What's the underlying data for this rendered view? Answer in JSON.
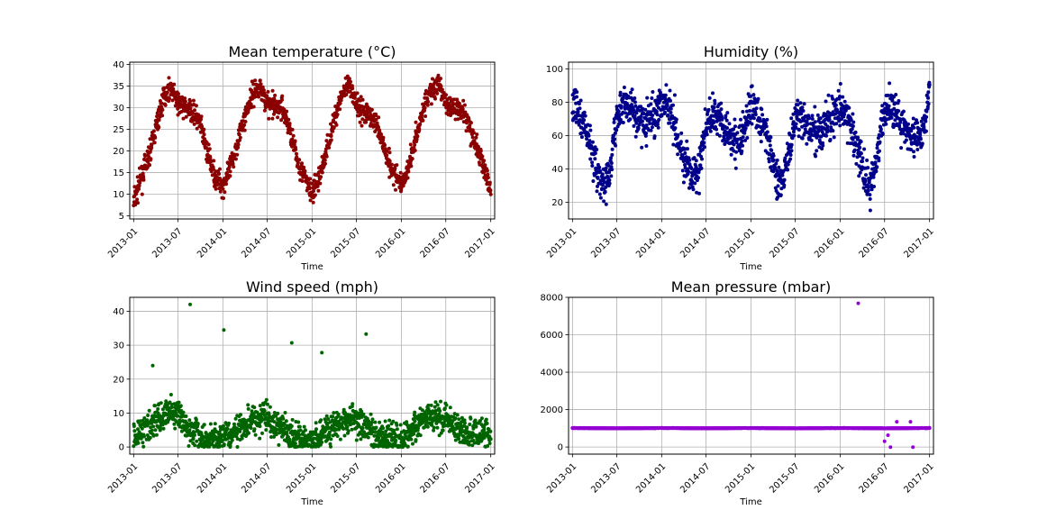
{
  "figure": {
    "panels": [
      {
        "title": "Mean temperature (°C)",
        "xlabel": "Time",
        "color": "#8b0000",
        "xticks": [
          "2013-01",
          "2013-07",
          "2014-01",
          "2014-07",
          "2015-01",
          "2015-07",
          "2016-01",
          "2016-07",
          "2017-01"
        ],
        "yticks": [
          5,
          10,
          15,
          20,
          25,
          30,
          35,
          40
        ],
        "ylim": [
          4.3,
          40.5
        ]
      },
      {
        "title": "Humidity (%)",
        "xlabel": "Time",
        "color": "#00008b",
        "xticks": [
          "2013-01",
          "2013-07",
          "2014-01",
          "2014-07",
          "2015-01",
          "2015-07",
          "2016-01",
          "2016-07",
          "2017-01"
        ],
        "yticks": [
          20,
          40,
          60,
          80,
          100
        ],
        "ylim": [
          10,
          104
        ]
      },
      {
        "title": "Wind speed (mph)",
        "xlabel": "Time",
        "color": "#006400",
        "xticks": [
          "2013-01",
          "2013-07",
          "2014-01",
          "2014-07",
          "2015-01",
          "2015-07",
          "2016-01",
          "2016-07",
          "2017-01"
        ],
        "yticks": [
          0,
          10,
          20,
          30,
          40
        ],
        "ylim": [
          -2.1,
          44.1
        ]
      },
      {
        "title": "Mean pressure (mbar)",
        "xlabel": "Time",
        "color": "#9400d3",
        "xticks": [
          "2013-01",
          "2013-07",
          "2014-01",
          "2014-07",
          "2015-01",
          "2015-07",
          "2016-01",
          "2016-07",
          "2017-01"
        ],
        "yticks": [
          0,
          2000,
          4000,
          6000,
          8000
        ],
        "ylim": [
          -380,
          8000
        ]
      }
    ]
  },
  "chart_data": [
    {
      "type": "scatter",
      "title": "Mean temperature (°C)",
      "xlabel": "Time",
      "ylabel": "",
      "x": [
        "2013-01-01",
        "2013-02-01",
        "2013-03-01",
        "2013-04-01",
        "2013-05-01",
        "2013-06-01",
        "2013-07-01",
        "2013-08-01",
        "2013-09-01",
        "2013-10-01",
        "2013-11-01",
        "2013-12-01",
        "2014-01-01",
        "2014-02-01",
        "2014-03-01",
        "2014-04-01",
        "2014-05-01",
        "2014-06-01",
        "2014-07-01",
        "2014-08-01",
        "2014-09-01",
        "2014-10-01",
        "2014-11-01",
        "2014-12-01",
        "2015-01-01",
        "2015-02-01",
        "2015-03-01",
        "2015-04-01",
        "2015-05-01",
        "2015-06-01",
        "2015-07-01",
        "2015-08-01",
        "2015-09-01",
        "2015-10-01",
        "2015-11-01",
        "2015-12-01",
        "2016-01-01",
        "2016-02-01",
        "2016-03-01",
        "2016-04-01",
        "2016-05-01",
        "2016-06-01",
        "2016-07-01",
        "2016-08-01",
        "2016-09-01",
        "2016-10-01",
        "2016-11-01",
        "2016-12-01",
        "2017-01-01"
      ],
      "y": [
        8,
        14,
        18,
        25,
        32,
        35,
        31,
        30,
        29,
        26,
        19,
        14,
        12,
        16,
        22,
        28,
        33,
        35,
        31,
        30,
        30,
        25,
        18,
        14,
        10,
        14,
        20,
        27,
        33,
        35,
        31,
        29,
        28,
        25,
        19,
        15,
        12,
        17,
        23,
        30,
        34,
        35,
        31,
        30,
        30,
        27,
        21,
        17,
        10
      ],
      "ylim": [
        4.3,
        40.5
      ]
    },
    {
      "type": "scatter",
      "title": "Humidity (%)",
      "xlabel": "Time",
      "ylabel": "",
      "x": [
        "2013-01-01",
        "2013-02-01",
        "2013-03-01",
        "2013-04-01",
        "2013-05-01",
        "2013-06-01",
        "2013-07-01",
        "2013-08-01",
        "2013-09-01",
        "2013-10-01",
        "2013-11-01",
        "2013-12-01",
        "2014-01-01",
        "2014-02-01",
        "2014-03-01",
        "2014-04-01",
        "2014-05-01",
        "2014-06-01",
        "2014-07-01",
        "2014-08-01",
        "2014-09-01",
        "2014-10-01",
        "2014-11-01",
        "2014-12-01",
        "2015-01-01",
        "2015-02-01",
        "2015-03-01",
        "2015-04-01",
        "2015-05-01",
        "2015-06-01",
        "2015-07-01",
        "2015-08-01",
        "2015-09-01",
        "2015-10-01",
        "2015-11-01",
        "2015-12-01",
        "2016-01-01",
        "2016-02-01",
        "2016-03-01",
        "2016-04-01",
        "2016-05-01",
        "2016-06-01",
        "2016-07-01",
        "2016-08-01",
        "2016-09-01",
        "2016-10-01",
        "2016-11-01",
        "2016-12-01",
        "2017-01-01"
      ],
      "y": [
        78,
        72,
        62,
        45,
        30,
        35,
        70,
        82,
        75,
        70,
        68,
        72,
        82,
        78,
        65,
        45,
        35,
        38,
        65,
        75,
        70,
        60,
        55,
        60,
        80,
        72,
        62,
        45,
        30,
        45,
        70,
        70,
        62,
        62,
        65,
        72,
        76,
        70,
        58,
        40,
        28,
        48,
        75,
        80,
        70,
        60,
        58,
        60,
        90
      ],
      "ylim": [
        10,
        104
      ]
    },
    {
      "type": "scatter",
      "title": "Wind speed (mph)",
      "xlabel": "Time",
      "ylabel": "",
      "x": [
        "2013-01-01",
        "2013-02-01",
        "2013-03-01",
        "2013-04-01",
        "2013-05-01",
        "2013-06-01",
        "2013-07-01",
        "2013-08-01",
        "2013-09-01",
        "2013-10-01",
        "2013-11-01",
        "2013-12-01",
        "2014-01-01",
        "2014-02-01",
        "2014-03-01",
        "2014-04-01",
        "2014-05-01",
        "2014-06-01",
        "2014-07-01",
        "2014-08-01",
        "2014-09-01",
        "2014-10-01",
        "2014-11-01",
        "2014-12-01",
        "2015-01-01",
        "2015-02-01",
        "2015-03-01",
        "2015-04-01",
        "2015-05-01",
        "2015-06-01",
        "2015-07-01",
        "2015-08-01",
        "2015-09-01",
        "2015-10-01",
        "2015-11-01",
        "2015-12-01",
        "2016-01-01",
        "2016-02-01",
        "2016-03-01",
        "2016-04-01",
        "2016-05-01",
        "2016-06-01",
        "2016-07-01",
        "2016-08-01",
        "2016-09-01",
        "2016-10-01",
        "2016-11-01",
        "2016-12-01",
        "2017-01-01"
      ],
      "y": [
        3,
        5,
        6,
        8,
        9,
        10,
        10,
        6,
        5,
        3,
        2,
        2,
        3,
        4,
        6,
        7,
        8,
        9,
        9,
        6,
        5,
        3,
        3,
        2,
        2,
        3,
        5,
        6,
        7,
        8,
        8,
        6,
        4,
        3,
        3,
        3,
        2,
        4,
        6,
        8,
        9,
        9,
        8,
        7,
        5,
        4,
        4,
        4,
        4
      ],
      "ylim": [
        -2.1,
        44.1
      ],
      "outliers": [
        {
          "x": "2013-08-20",
          "y": 42
        },
        {
          "x": "2014-01-05",
          "y": 34.5
        },
        {
          "x": "2014-10-10",
          "y": 30.7
        },
        {
          "x": "2015-02-10",
          "y": 27.8
        },
        {
          "x": "2015-08-10",
          "y": 33.3
        },
        {
          "x": "2013-03-20",
          "y": 24
        }
      ]
    },
    {
      "type": "scatter",
      "title": "Mean pressure (mbar)",
      "xlabel": "Time",
      "ylabel": "",
      "x": [
        "2013-01-01",
        "2013-03-01",
        "2013-05-01",
        "2013-07-01",
        "2013-09-01",
        "2013-11-01",
        "2014-01-01",
        "2014-03-01",
        "2014-05-01",
        "2014-07-01",
        "2014-09-01",
        "2014-11-01",
        "2015-01-01",
        "2015-03-01",
        "2015-05-01",
        "2015-07-01",
        "2015-09-01",
        "2015-11-01",
        "2016-01-01",
        "2016-03-01",
        "2016-05-01",
        "2016-07-01",
        "2016-09-01",
        "2016-11-01",
        "2017-01-01"
      ],
      "y": [
        1015,
        1012,
        1005,
        998,
        1005,
        1012,
        1016,
        1012,
        1005,
        998,
        1005,
        1012,
        1015,
        1011,
        1004,
        998,
        1004,
        1011,
        1016,
        1012,
        1005,
        998,
        1005,
        1012,
        1016
      ],
      "ylim": [
        -380,
        8000
      ],
      "outliers": [
        {
          "x": "2016-03-15",
          "y": 7680
        },
        {
          "x": "2016-07-01",
          "y": 310
        },
        {
          "x": "2016-07-15",
          "y": 630
        },
        {
          "x": "2016-07-25",
          "y": -10
        },
        {
          "x": "2016-08-20",
          "y": 1350
        },
        {
          "x": "2016-10-15",
          "y": 1350
        },
        {
          "x": "2016-10-25",
          "y": -10
        }
      ]
    }
  ]
}
